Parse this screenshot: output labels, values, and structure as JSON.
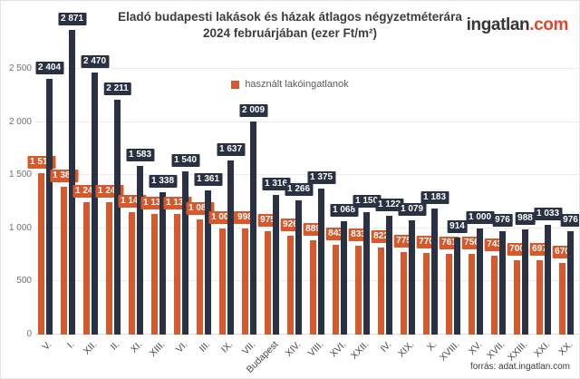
{
  "header": {
    "title_line1": "Eladó budapesti lakások és házak átlagos négyzetméterára",
    "title_line2": "2024 februárjában (ezer Ft/m²)",
    "logo_text": "ingatlan",
    "logo_suffix": ".com"
  },
  "legend": {
    "used_label": "használt lakóingatlanok"
  },
  "footer": {
    "source": "forrás: adat.ingatlan.com"
  },
  "colors": {
    "dark": "#2A3143",
    "orange": "#D7582B",
    "grid": "#EBEBEB",
    "logo_dark": "#363636",
    "logo_orange": "#E4452E"
  },
  "chart_data": {
    "type": "bar",
    "title": "Eladó budapesti lakások és házak átlagos négyzetméterára 2024 februárjában (ezer Ft/m²)",
    "categories": [
      "V.",
      "I.",
      "XII.",
      "II.",
      "XI.",
      "XIII.",
      "VI.",
      "III.",
      "IX.",
      "VII.",
      "Budapest",
      "XIV.",
      "VIII.",
      "XVI.",
      "XXII.",
      "IV.",
      "XIX.",
      "X.",
      "XVIII.",
      "XV.",
      "XVII.",
      "XXIII.",
      "XXI.",
      "XX."
    ],
    "series": [
      {
        "name": "",
        "color": "#2A3143",
        "values": [
          2404,
          2871,
          2470,
          2211,
          1583,
          1338,
          1540,
          1361,
          1637,
          2009,
          1316,
          1266,
          1375,
          1068,
          1150,
          1122,
          1079,
          1183,
          914,
          1000,
          976,
          988,
          1033,
          976
        ]
      },
      {
        "name": "használt lakóingatlanok",
        "color": "#D7582B",
        "values": [
          1518,
          1387,
          1246,
          1242,
          1149,
          1133,
          1131,
          1080,
          1000,
          998,
          975,
          926,
          889,
          843,
          833,
          822,
          775,
          770,
          761,
          756,
          743,
          700,
          697,
          670
        ]
      }
    ],
    "ylabel": "",
    "xlabel": "",
    "ylim": [
      0,
      2500
    ],
    "yticks": [
      0,
      500,
      1000,
      1500,
      2000,
      2500
    ],
    "grid": true,
    "legend_position": "top-center",
    "value_labels": true
  }
}
